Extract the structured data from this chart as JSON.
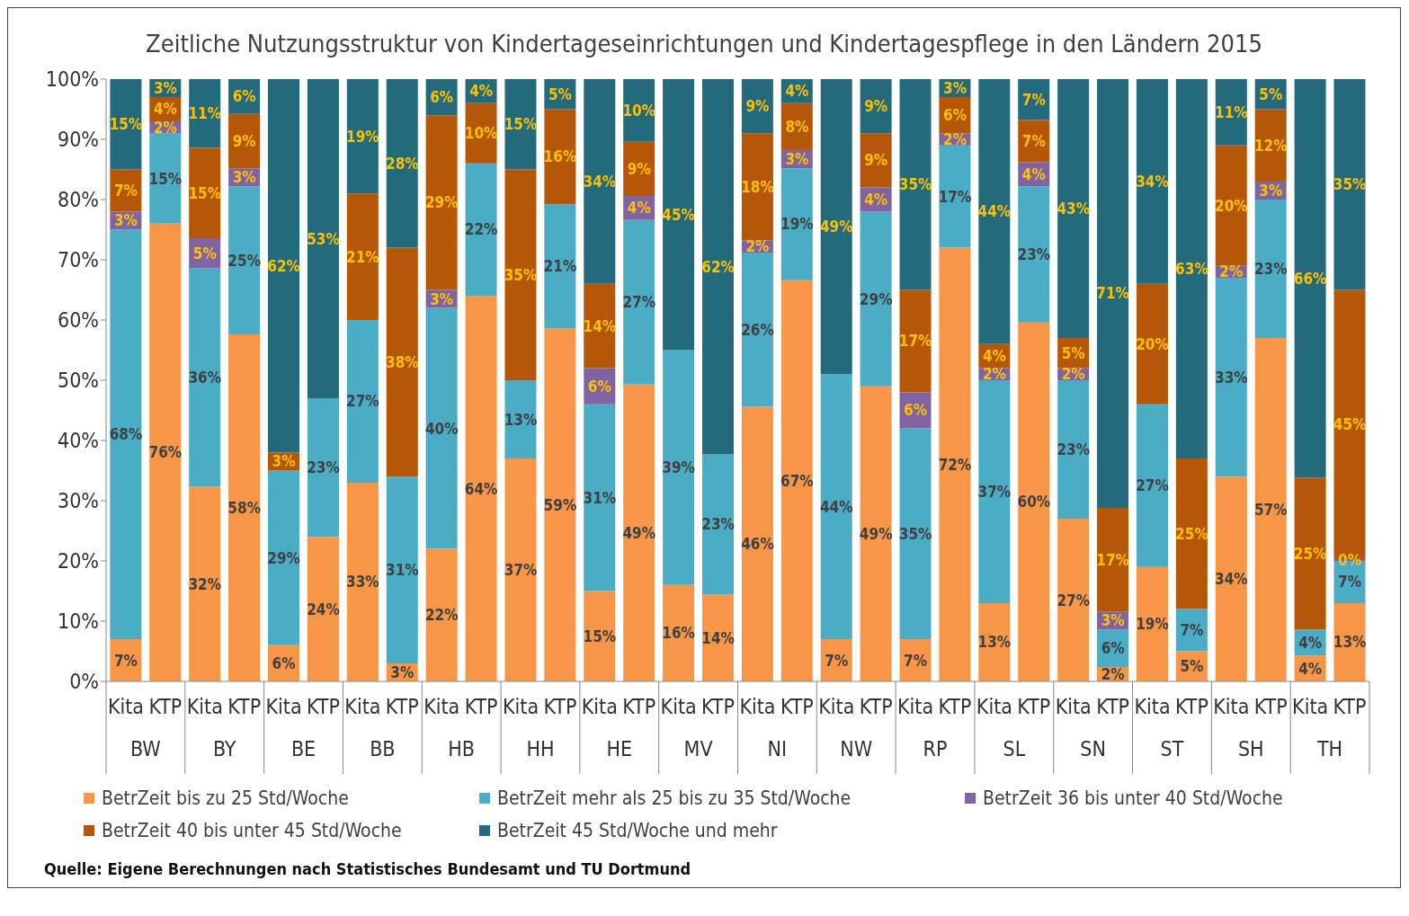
{
  "chart_data": {
    "type": "bar",
    "stacked": true,
    "title": "Zeitliche Nutzungsstruktur von Kindertageseinrichtungen und Kindertagespflege in den Ländern 2015",
    "categories": [
      "Kita",
      "KTP",
      "Kita",
      "KTP",
      "Kita",
      "KTP",
      "Kita",
      "KTP",
      "Kita",
      "KTP",
      "Kita",
      "KTP",
      "Kita",
      "KTP",
      "Kita",
      "KTP",
      "Kita",
      "KTP",
      "Kita",
      "KTP",
      "Kita",
      "KTP",
      "Kita",
      "KTP",
      "Kita",
      "KTP",
      "Kita",
      "KTP",
      "Kita",
      "KTP",
      "Kita",
      "KTP"
    ],
    "series": [
      {
        "name": "BetrZeit bis zu 25 Std/Woche",
        "color": "#f79646",
        "values": [
          7,
          76,
          32.3,
          57.6,
          6,
          24,
          33,
          3,
          22,
          64,
          37,
          58.6,
          15,
          49.3,
          16,
          14.4,
          45.6,
          66.6,
          7,
          49,
          7,
          72,
          13,
          59.6,
          27,
          2.4,
          19,
          5,
          34,
          57,
          4.3,
          13
        ],
        "value_labels": [
          "7%",
          "76%",
          "32%",
          "58%",
          "6%",
          "24%",
          "33%",
          "3%",
          "22%",
          "64%",
          "37%",
          "59%",
          "15%",
          "49%",
          "16%",
          "14%",
          "46%",
          "67%",
          "7%",
          "49%",
          "7%",
          "72%",
          "13%",
          "60%",
          "27%",
          "2%",
          "19%",
          "5%",
          "34%",
          "57%",
          "4%",
          "13%"
        ]
      },
      {
        "name": "BetrZeit mehr als 25 bis zu 35 Std/Woche",
        "color": "#4bacc6",
        "values": [
          68,
          15,
          36.3,
          24.6,
          29,
          23,
          27,
          31,
          40,
          22,
          13,
          20.6,
          31,
          27.3,
          39,
          23.3,
          25.6,
          18.6,
          44,
          29,
          35,
          17,
          37,
          22.6,
          23,
          6.2,
          27,
          7,
          33,
          23,
          4.3,
          7
        ],
        "value_labels": [
          "68%",
          "15%",
          "36%",
          "25%",
          "29%",
          "23%",
          "27%",
          "31%",
          "40%",
          "22%",
          "13%",
          "21%",
          "31%",
          "27%",
          "39%",
          "23%",
          "26%",
          "19%",
          "44%",
          "29%",
          "35%",
          "17%",
          "37%",
          "23%",
          "23%",
          "6%",
          "27%",
          "7%",
          "33%",
          "23%",
          "4%",
          "7%"
        ]
      },
      {
        "name": "BetrZeit 36 bis unter 40 Std/Woche",
        "color": "#8064a2",
        "values": [
          3,
          2,
          5,
          3,
          0,
          0,
          0,
          0,
          3,
          0,
          0,
          0,
          6,
          4,
          0,
          0,
          2,
          3,
          0,
          4,
          6,
          2,
          2,
          4,
          2,
          3,
          0,
          0,
          2,
          3,
          0,
          0.3
        ],
        "value_labels": [
          "3%",
          "2%",
          "5%",
          "3%",
          null,
          null,
          null,
          null,
          "3%",
          null,
          null,
          null,
          "6%",
          "4%",
          null,
          null,
          "2%",
          "3%",
          null,
          "4%",
          "6%",
          "2%",
          "2%",
          "4%",
          "2%",
          "3%",
          null,
          null,
          "2%",
          "3%",
          null,
          "0%"
        ]
      },
      {
        "name": "BetrZeit 40 bis unter 45 Std/Woche",
        "color": "#b65708",
        "values": [
          7,
          4,
          15,
          9,
          3,
          0,
          21,
          38,
          29,
          10,
          35,
          15.8,
          14,
          9,
          0,
          0,
          17.8,
          7.8,
          0,
          9,
          17,
          6,
          4,
          7,
          5,
          17.2,
          20,
          25,
          20,
          12,
          25.2,
          44.7
        ],
        "value_labels": [
          "7%",
          "4%",
          "15%",
          "9%",
          "3%",
          null,
          "21%",
          "38%",
          "29%",
          "10%",
          "35%",
          "16%",
          "14%",
          "9%",
          null,
          null,
          "18%",
          "8%",
          null,
          "9%",
          "17%",
          "6%",
          "4%",
          "7%",
          "5%",
          "17%",
          "20%",
          "25%",
          "20%",
          "12%",
          "25%",
          "45%"
        ]
      },
      {
        "name": "BetrZeit 45 Std/Woche und mehr",
        "color": "#236b7c",
        "values": [
          15,
          3,
          11.4,
          5.8,
          62,
          53,
          19,
          28,
          6,
          4,
          15,
          5,
          34,
          10.4,
          45,
          62.3,
          9,
          4,
          49,
          9,
          35,
          3,
          44,
          6.8,
          43,
          71.2,
          34,
          63,
          11,
          5,
          66.2,
          35
        ],
        "value_labels": [
          "15%",
          "3%",
          "11%",
          "6%",
          "62%",
          "53%",
          "19%",
          "28%",
          "6%",
          "4%",
          "15%",
          "5%",
          "34%",
          "10%",
          "45%",
          "62%",
          "9%",
          "4%",
          "49%",
          "9%",
          "35%",
          "3%",
          "44%",
          "7%",
          "43%",
          "71%",
          "34%",
          "63%",
          "11%",
          "5%",
          "66%",
          "35%"
        ]
      }
    ],
    "ylim": [
      0,
      100
    ],
    "yticks": [
      {
        "value": 0,
        "label": "0%"
      },
      {
        "value": 10,
        "label": "10%"
      },
      {
        "value": 20,
        "label": "20%"
      },
      {
        "value": 30,
        "label": "30%"
      },
      {
        "value": 40,
        "label": "40%"
      },
      {
        "value": 50,
        "label": "50%"
      },
      {
        "value": 60,
        "label": "60%"
      },
      {
        "value": 70,
        "label": "70%"
      },
      {
        "value": 80,
        "label": "80%"
      },
      {
        "value": 90,
        "label": "90%"
      },
      {
        "value": 100,
        "label": "100%"
      }
    ],
    "legend": "bottom",
    "annotations": [
      "BW",
      "BY",
      "BE",
      "BB",
      "HB",
      "HH",
      "HE",
      "MV",
      "NI",
      "NW",
      "RP",
      "SL",
      "SN",
      "ST",
      "SH",
      "TH",
      "Quelle: Eigene Berechnungen nach Statistisches Bundesamt und TU Dortmund"
    ]
  }
}
